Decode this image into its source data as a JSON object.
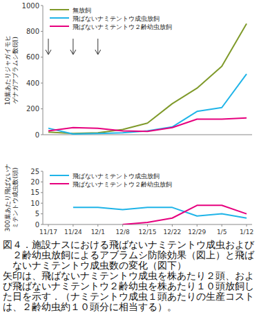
{
  "chart_data": [
    {
      "type": "line",
      "y_label": "10葉あたりジャガイモヒゲナガアブラムシ数(頭)",
      "categories": [
        "11/17",
        "11/24",
        "12/1",
        "12/8",
        "12/15",
        "12/22",
        "12/29",
        "1/5",
        "1/12"
      ],
      "series": [
        {
          "name": "無放飼",
          "color": "#7f9a2a",
          "values": [
            20,
            10,
            15,
            40,
            90,
            240,
            360,
            530,
            860
          ]
        },
        {
          "name": "飛ばないナミテントウ成虫放飼",
          "color": "#1fb4e8",
          "values": [
            50,
            5,
            10,
            15,
            30,
            60,
            180,
            210,
            470
          ]
        },
        {
          "name": "飛ばないナミテントウ２齢幼虫放飼",
          "color": "#e6007e",
          "values": [
            30,
            55,
            50,
            30,
            25,
            55,
            120,
            120,
            130
          ]
        }
      ],
      "arrows": [
        "11/17",
        "11/24",
        "12/1"
      ],
      "ylim": [
        0,
        1000
      ],
      "yticks": [
        0,
        200,
        400,
        600,
        800,
        1000
      ],
      "grid": false,
      "legend": "upper left",
      "tick_labels": "y"
    },
    {
      "type": "line",
      "y_label": "300葉あたり飛ばないナミテントウ成虫数(頭)",
      "categories": [
        "11/17",
        "11/24",
        "12/1",
        "12/8",
        "12/15",
        "12/22",
        "12/29",
        "1/5",
        "1/12"
      ],
      "series": [
        {
          "name": "飛ばないナミテントウ成虫放飼",
          "color": "#1fb4e8",
          "values": [
            null,
            8,
            8,
            7,
            8,
            8,
            4,
            5,
            3
          ]
        },
        {
          "name": "飛ばないナミテントウ２齢幼虫放飼",
          "color": "#e6007e",
          "values": [
            null,
            null,
            null,
            0,
            1,
            3,
            9,
            9,
            5
          ]
        }
      ],
      "ylim": [
        0,
        25
      ],
      "yticks": [
        0,
        5,
        10,
        15,
        20,
        25
      ],
      "grid": false,
      "legend": "upper left",
      "tick_labels": true
    }
  ],
  "caption": "図４．施設ナスにおける飛ばないナミテントウ成虫および２齢幼虫放飼によるアブラムシ防除効果（図上）と飛ばないナミテントウ成虫数の変化（図下）",
  "note": "矢印は、飛ばないナミテントウ成虫を株あたり２頭、および飛ばないナミテントウ２齢幼虫を株あたり１０頭放飼した日を示す．（ナミテントウ成虫１頭あたりの生産コストは、２齢幼虫約１０頭分に相当する）。"
}
